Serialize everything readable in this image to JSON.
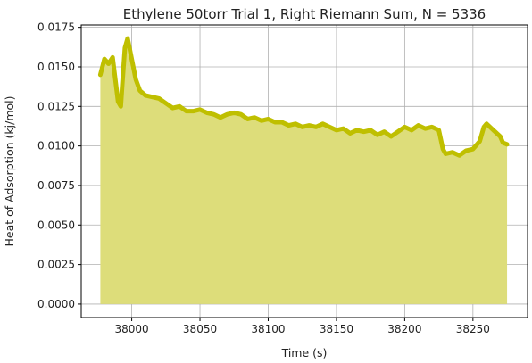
{
  "chart_data": {
    "type": "area",
    "title": "Ethylene 50torr Trial 1, Right Riemann Sum, N = 5336",
    "xlabel": "Time (s)",
    "ylabel": "Heat of Adsorption (kj/mol)",
    "xlim": [
      37963,
      38290
    ],
    "ylim": [
      -0.00085,
      0.01765
    ],
    "x_ticks": [
      38000,
      38050,
      38100,
      38150,
      38200,
      38250
    ],
    "x_tick_labels": [
      "38000",
      "38050",
      "38100",
      "38150",
      "38200",
      "38250"
    ],
    "y_ticks": [
      0.0,
      0.0025,
      0.005,
      0.0075,
      0.01,
      0.0125,
      0.015,
      0.0175
    ],
    "y_tick_labels": [
      "0.0000",
      "0.0025",
      "0.0050",
      "0.0075",
      "0.0100",
      "0.0125",
      "0.0150",
      "0.0175"
    ],
    "grid": true,
    "series_color": "#bfbf00",
    "fill_color": "#dddd7a",
    "series": [
      {
        "x": [
          37977,
          37980,
          37983,
          37986,
          37988,
          37990,
          37992,
          37993,
          37995,
          37997,
          38000,
          38003,
          38006,
          38010,
          38015,
          38020,
          38025,
          38030,
          38035,
          38040,
          38045,
          38050,
          38055,
          38060,
          38065,
          38070,
          38075,
          38080,
          38085,
          38090,
          38095,
          38100,
          38105,
          38110,
          38115,
          38120,
          38125,
          38130,
          38135,
          38140,
          38145,
          38150,
          38155,
          38160,
          38165,
          38170,
          38175,
          38180,
          38185,
          38190,
          38195,
          38200,
          38205,
          38210,
          38215,
          38220,
          38225,
          38228,
          38230,
          38235,
          38240,
          38245,
          38250,
          38255,
          38258,
          38260,
          38265,
          38270,
          38272,
          38275
        ],
        "y": [
          0.0145,
          0.0155,
          0.0152,
          0.0156,
          0.0142,
          0.0128,
          0.0125,
          0.0138,
          0.0162,
          0.0168,
          0.0155,
          0.0142,
          0.0135,
          0.0132,
          0.0131,
          0.013,
          0.0127,
          0.0124,
          0.0125,
          0.0122,
          0.0122,
          0.0123,
          0.0121,
          0.012,
          0.0118,
          0.012,
          0.0121,
          0.012,
          0.0117,
          0.0118,
          0.0116,
          0.0117,
          0.0115,
          0.0115,
          0.0113,
          0.0114,
          0.0112,
          0.0113,
          0.0112,
          0.0114,
          0.0112,
          0.011,
          0.0111,
          0.0108,
          0.011,
          0.0109,
          0.011,
          0.0107,
          0.0109,
          0.0106,
          0.0109,
          0.0112,
          0.011,
          0.0113,
          0.0111,
          0.0112,
          0.011,
          0.0098,
          0.0095,
          0.0096,
          0.0094,
          0.0097,
          0.0098,
          0.0103,
          0.0112,
          0.0114,
          0.011,
          0.0106,
          0.0102,
          0.0101
        ]
      }
    ]
  }
}
